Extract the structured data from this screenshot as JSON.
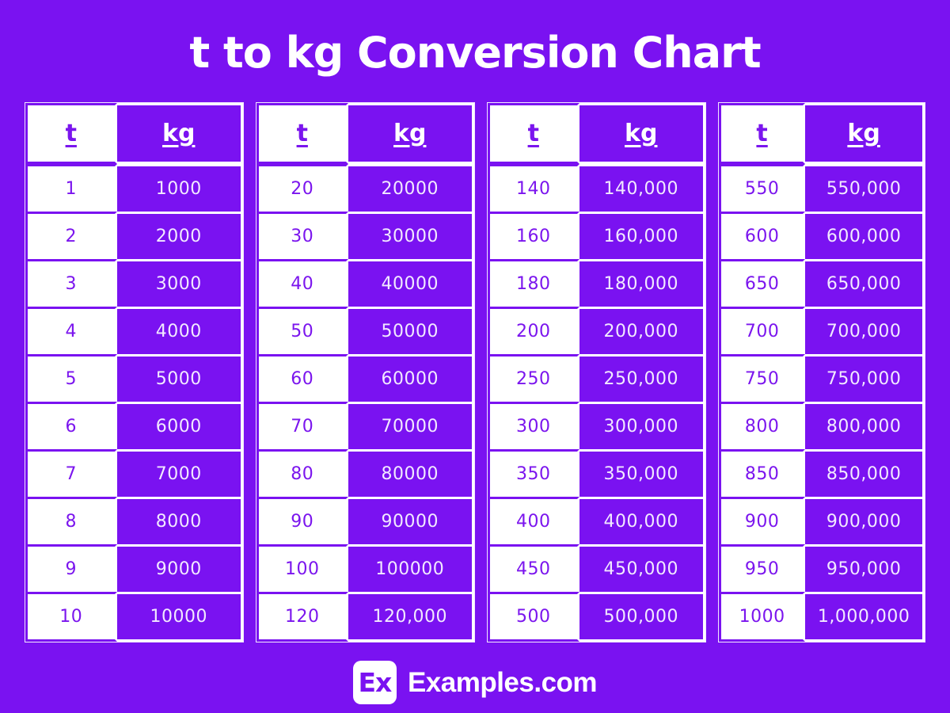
{
  "page": {
    "title": "t to kg Conversion Chart",
    "background_color": "#7A12F1",
    "accent_white": "#FFFFFF",
    "purple_text_color": "#7B15EE",
    "kg_value_text_color": "#F2E9FF"
  },
  "footer": {
    "logo_text": "Ex",
    "brand_text": "Examples.com"
  },
  "chart_data": {
    "type": "table",
    "title": "t to kg Conversion Chart",
    "columns": [
      "t",
      "kg"
    ],
    "tables": [
      {
        "rows": [
          [
            "1",
            "1000"
          ],
          [
            "2",
            "2000"
          ],
          [
            "3",
            "3000"
          ],
          [
            "4",
            "4000"
          ],
          [
            "5",
            "5000"
          ],
          [
            "6",
            "6000"
          ],
          [
            "7",
            "7000"
          ],
          [
            "8",
            "8000"
          ],
          [
            "9",
            "9000"
          ],
          [
            "10",
            "10000"
          ]
        ]
      },
      {
        "rows": [
          [
            "20",
            "20000"
          ],
          [
            "30",
            "30000"
          ],
          [
            "40",
            "40000"
          ],
          [
            "50",
            "50000"
          ],
          [
            "60",
            "60000"
          ],
          [
            "70",
            "70000"
          ],
          [
            "80",
            "80000"
          ],
          [
            "90",
            "90000"
          ],
          [
            "100",
            "100000"
          ],
          [
            "120",
            "120,000"
          ]
        ]
      },
      {
        "rows": [
          [
            "140",
            "140,000"
          ],
          [
            "160",
            "160,000"
          ],
          [
            "180",
            "180,000"
          ],
          [
            "200",
            "200,000"
          ],
          [
            "250",
            "250,000"
          ],
          [
            "300",
            "300,000"
          ],
          [
            "350",
            "350,000"
          ],
          [
            "400",
            "400,000"
          ],
          [
            "450",
            "450,000"
          ],
          [
            "500",
            "500,000"
          ]
        ]
      },
      {
        "rows": [
          [
            "550",
            "550,000"
          ],
          [
            "600",
            "600,000"
          ],
          [
            "650",
            "650,000"
          ],
          [
            "700",
            "700,000"
          ],
          [
            "750",
            "750,000"
          ],
          [
            "800",
            "800,000"
          ],
          [
            "850",
            "850,000"
          ],
          [
            "900",
            "900,000"
          ],
          [
            "950",
            "950,000"
          ],
          [
            "1000",
            "1,000,000"
          ]
        ]
      }
    ]
  }
}
